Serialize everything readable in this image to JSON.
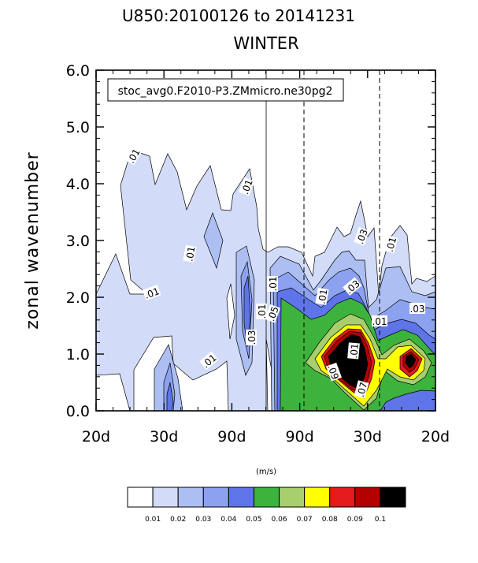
{
  "chart_data": {
    "type": "heatmap",
    "title": "U850:20100126 to 20141231",
    "subtitle": "WINTER",
    "case_label": "stoc_avg0.F2010-P3.ZMmicro.ne30pg2",
    "xlabel": "",
    "ylabel": "zonal wavenumber",
    "units": "(m/s)",
    "ylim": [
      0.0,
      6.0
    ],
    "y_ticks": [
      "0.0",
      "1.0",
      "2.0",
      "3.0",
      "4.0",
      "5.0",
      "6.0"
    ],
    "x_ticks": [
      "20d",
      "30d",
      "90d",
      "90d",
      "30d",
      "20d"
    ],
    "legend_levels": [
      "0.01",
      "0.02",
      "0.03",
      "0.04",
      "0.05",
      "0.06",
      "0.07",
      "0.08",
      "0.09",
      "0.1"
    ],
    "legend_colors": [
      "#ffffff",
      "#d2dcf8",
      "#adbff2",
      "#8ca2f0",
      "#5f74e8",
      "#3db33d",
      "#a8cf6e",
      "#ffff00",
      "#e41a1c",
      "#b30000",
      "#000000"
    ],
    "contour_labels": [
      ".01",
      ".01",
      ".01",
      ".01",
      ".01",
      ".03",
      ".01",
      ".01",
      ".05",
      ".01",
      ".03",
      ".01",
      ".01",
      ".03",
      ".03",
      ".09",
      ".07",
      ".01"
    ],
    "grid": false,
    "legend_position": "bottom"
  }
}
